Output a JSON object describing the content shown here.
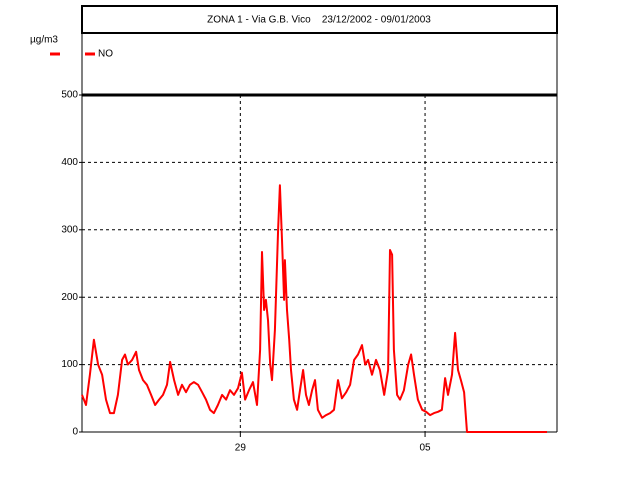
{
  "chart_data": {
    "type": "line",
    "title": "ZONA 1 - Via G.B. Vico    23/12/2002 - 09/01/2003",
    "y_label": "µg/m3",
    "x": [
      0,
      0.15,
      0.3,
      0.45,
      0.61,
      0.76,
      0.91,
      1.06,
      1.21,
      1.36,
      1.52,
      1.63,
      1.74,
      1.9,
      2.05,
      2.16,
      2.31,
      2.46,
      2.62,
      2.77,
      2.92,
      3.07,
      3.22,
      3.34,
      3.49,
      3.64,
      3.79,
      3.94,
      4.09,
      4.24,
      4.4,
      4.55,
      4.7,
      4.85,
      5.0,
      5.15,
      5.31,
      5.46,
      5.61,
      5.76,
      5.91,
      6.06,
      6.18,
      6.33,
      6.48,
      6.63,
      6.75,
      6.82,
      6.9,
      6.97,
      7.05,
      7.13,
      7.2,
      7.31,
      7.43,
      7.5,
      7.58,
      7.66,
      7.69,
      7.77,
      7.85,
      7.92,
      8.03,
      8.15,
      8.26,
      8.38,
      8.49,
      8.6,
      8.72,
      8.83,
      8.94,
      9.1,
      9.25,
      9.4,
      9.55,
      9.7,
      9.85,
      10.01,
      10.16,
      10.31,
      10.46,
      10.61,
      10.73,
      10.84,
      10.99,
      11.14,
      11.29,
      11.45,
      11.6,
      11.67,
      11.75,
      11.82,
      11.94,
      12.05,
      12.2,
      12.36,
      12.47,
      12.58,
      12.73,
      12.89,
      13.04,
      13.19,
      13.34,
      13.49,
      13.64,
      13.76,
      13.87,
      14.02,
      14.14,
      14.25,
      14.36,
      14.48,
      14.59,
      17.62
    ],
    "series": [
      {
        "name": "NO",
        "color": "#ff0000",
        "values": [
          55,
          40,
          85,
          137,
          100,
          85,
          48,
          28,
          28,
          55,
          107,
          115,
          100,
          107,
          119,
          92,
          77,
          70,
          55,
          40,
          48,
          55,
          70,
          104,
          77,
          55,
          70,
          59,
          70,
          74,
          70,
          59,
          48,
          33,
          28,
          40,
          55,
          48,
          62,
          55,
          65,
          88,
          48,
          62,
          74,
          40,
          122,
          267,
          181,
          196,
          166,
          100,
          77,
          151,
          300,
          366,
          285,
          196,
          255,
          181,
          137,
          92,
          48,
          33,
          62,
          92,
          55,
          40,
          62,
          77,
          33,
          21,
          25,
          28,
          33,
          77,
          50,
          59,
          70,
          107,
          115,
          129,
          100,
          107,
          85,
          107,
          92,
          55,
          92,
          270,
          263,
          122,
          55,
          48,
          62,
          100,
          115,
          85,
          48,
          33,
          30,
          25,
          28,
          30,
          33,
          80,
          55,
          85,
          147,
          92,
          77,
          59,
          0,
          0
        ]
      }
    ],
    "xlim": [
      0,
      18
    ],
    "xticks": [
      {
        "value": 6,
        "label": "29"
      },
      {
        "value": 13,
        "label": "05"
      }
    ],
    "ylim": [
      0,
      500
    ],
    "yticks": [
      0,
      100,
      200,
      300,
      400,
      500
    ],
    "grid": true
  }
}
